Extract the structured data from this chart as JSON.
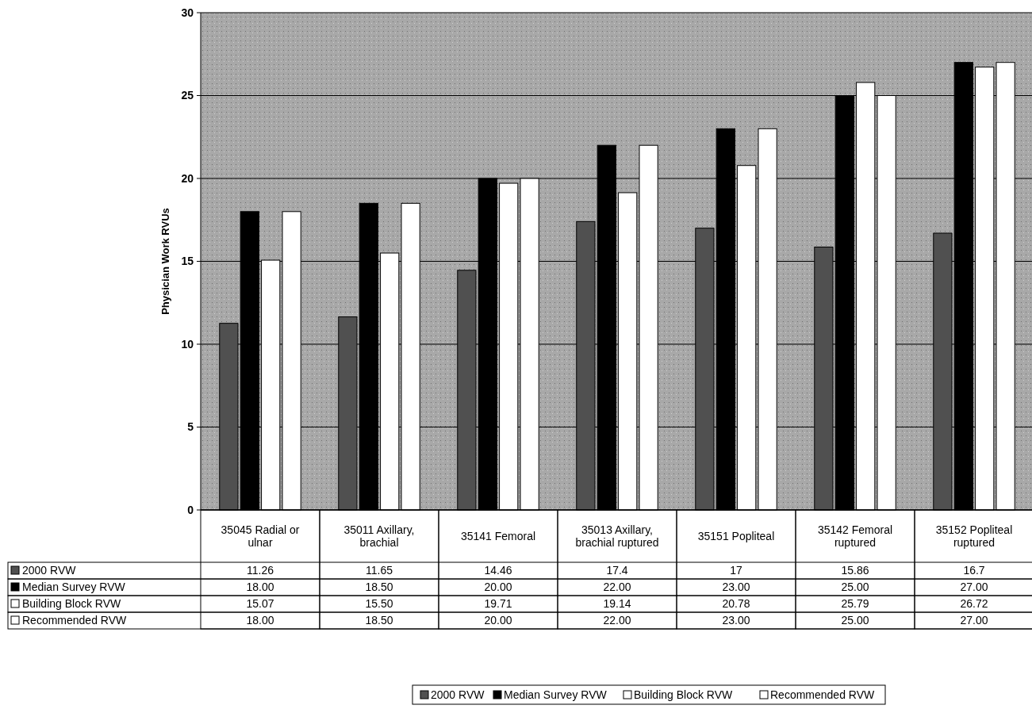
{
  "chart_data": {
    "type": "bar",
    "ylabel": "Physician Work RVUs",
    "categories": [
      "35045 Radial or ulnar",
      "35011 Axillary, brachial",
      "35141 Femoral",
      "35013 Axillary, brachial ruptured",
      "35151 Popliteal",
      "35142 Femoral ruptured",
      "35152 Popliteal ruptured"
    ],
    "series": [
      {
        "name": "2000 RVW",
        "color": "#505050",
        "values": [
          11.26,
          11.65,
          14.46,
          17.4,
          17,
          15.86,
          16.7
        ],
        "value_labels": [
          "11.26",
          "11.65",
          "14.46",
          "17.4",
          "17",
          "15.86",
          "16.7"
        ]
      },
      {
        "name": "Median Survey RVW",
        "color": "#000000",
        "values": [
          18,
          18.5,
          20,
          22,
          23,
          25,
          27
        ],
        "value_labels": [
          "18.00",
          "18.50",
          "20.00",
          "22.00",
          "23.00",
          "25.00",
          "27.00"
        ]
      },
      {
        "name": "Building Block RVW",
        "color": "#ffffff",
        "values": [
          15.07,
          15.5,
          19.71,
          19.14,
          20.78,
          25.79,
          26.72
        ],
        "value_labels": [
          "15.07",
          "15.50",
          "19.71",
          "19.14",
          "20.78",
          "25.79",
          "26.72"
        ]
      },
      {
        "name": "Recommended RVW",
        "color": "#ffffff",
        "values": [
          18,
          18.5,
          20,
          22,
          23,
          25,
          27
        ],
        "value_labels": [
          "18.00",
          "18.50",
          "20.00",
          "22.00",
          "23.00",
          "25.00",
          "27.00"
        ]
      }
    ],
    "ylim": [
      0,
      30
    ],
    "yticks": [
      0,
      5,
      10,
      15,
      20,
      25,
      30
    ],
    "grid": "y",
    "legend": "bottom"
  }
}
